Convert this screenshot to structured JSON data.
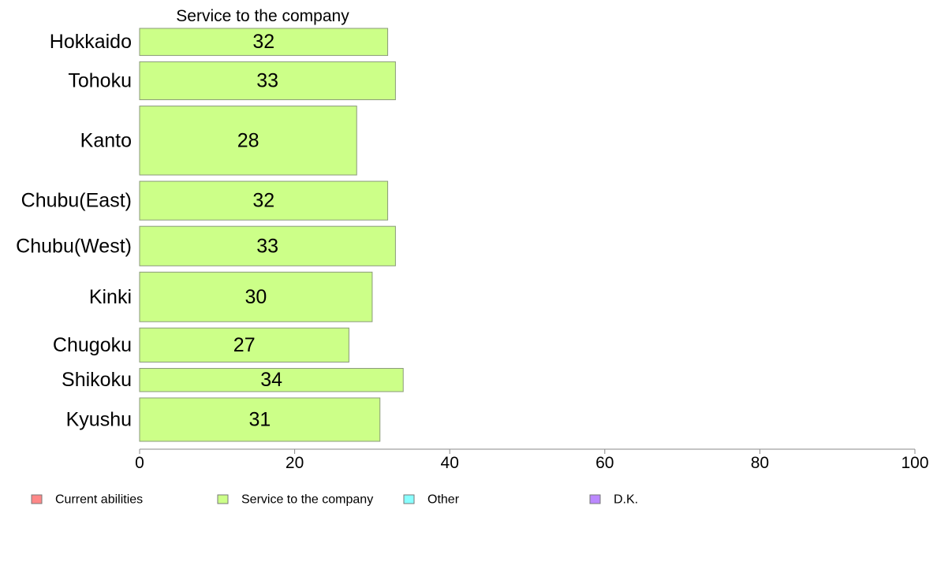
{
  "chart_data": {
    "type": "bar",
    "orientation": "horizontal",
    "title": "Service to the company",
    "categories": [
      "Hokkaido",
      "Tohoku",
      "Kanto",
      "Chubu(East)",
      "Chubu(West)",
      "Kinki",
      "Chugoku",
      "Shikoku",
      "Kyushu"
    ],
    "series": [
      {
        "name": "Service to the company",
        "values": [
          32,
          33,
          28,
          32,
          33,
          30,
          27,
          34,
          31
        ],
        "color": "#ccff88"
      }
    ],
    "category_weights": [
      35,
      49,
      89,
      50,
      51,
      64,
      44,
      30,
      56
    ],
    "xlim": [
      0,
      100
    ],
    "xticks": [
      0,
      20,
      40,
      60,
      80,
      100
    ],
    "grid": false,
    "legend_position": "bottom",
    "legend": [
      {
        "label": "Current abilities",
        "color": "#ff8888"
      },
      {
        "label": "Service to the company",
        "color": "#ccff88"
      },
      {
        "label": "Other",
        "color": "#88ffff"
      },
      {
        "label": "D.K.",
        "color": "#bb88ff"
      }
    ]
  }
}
